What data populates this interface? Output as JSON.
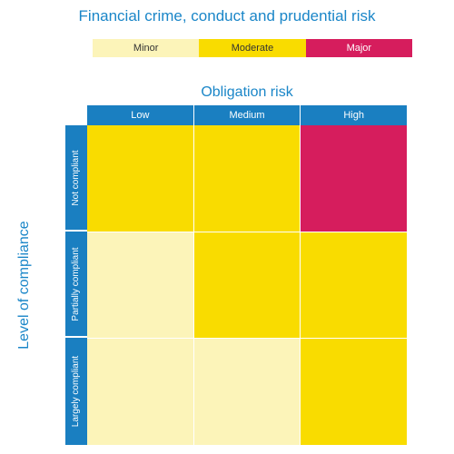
{
  "title": "Financial crime, conduct and prudential risk",
  "legend": {
    "minor": "Minor",
    "moderate": "Moderate",
    "major": "Major"
  },
  "colors": {
    "minor": "#fcf4b9",
    "moderate": "#f9dc00",
    "major": "#d61d5d",
    "header": "#1a7fc1",
    "title_text": "#1a86c8"
  },
  "x_axis": {
    "title": "Obligation risk",
    "columns": [
      "Low",
      "Medium",
      "High"
    ]
  },
  "y_axis": {
    "title": "Level of compliance",
    "rows": [
      "Not compliant",
      "Partially compliant",
      "Largely compliant"
    ]
  },
  "matrix": [
    [
      "moderate",
      "moderate",
      "major"
    ],
    [
      "minor",
      "moderate",
      "moderate"
    ],
    [
      "minor",
      "minor",
      "moderate"
    ]
  ]
}
